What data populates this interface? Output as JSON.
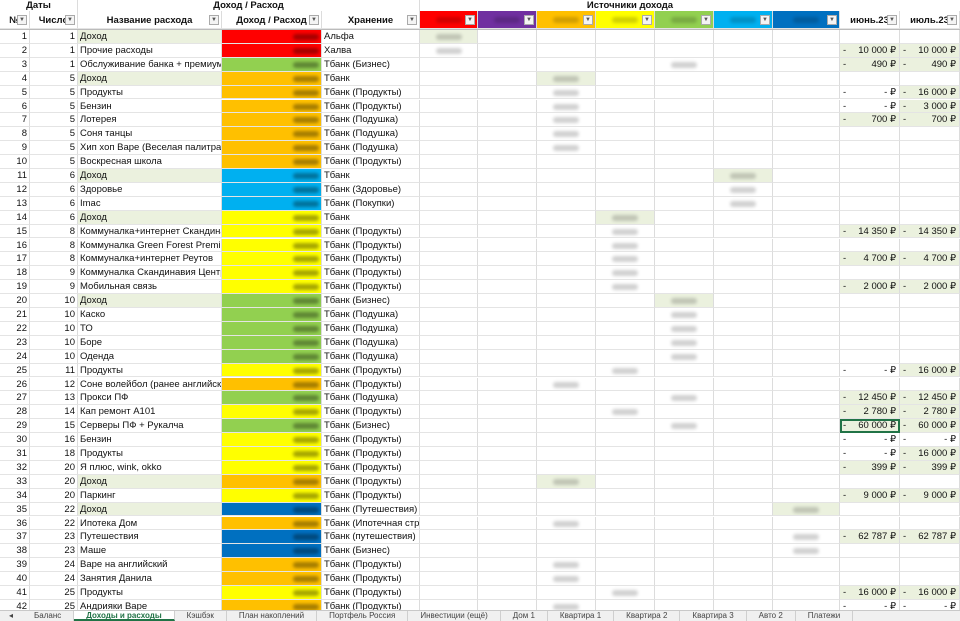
{
  "colors": {
    "red": "#ff0000",
    "purple": "#7030a0",
    "orange": "#ffc000",
    "yellow": "#ffff00",
    "green": "#92d050",
    "sky": "#00b0f0",
    "blue": "#0070c0",
    "income_bg": "#ebf1de",
    "value_bg": "#ebf1de",
    "active_tab": "#217346"
  },
  "header": {
    "group_dates": "Даты",
    "group_income_expense": "Доход / Расход",
    "group_sources": "Источники дохода",
    "col_no": "№",
    "col_day": "Число",
    "col_name": "Название расхода",
    "col_amount": "Доход / Расход",
    "col_storage": "Хранение",
    "source_colors": [
      "red",
      "purple",
      "orange",
      "yellow",
      "green",
      "sky",
      "blue"
    ],
    "col_june": "июнь.23",
    "col_july": "июль.23"
  },
  "rows": [
    {
      "no": "1",
      "day": "1",
      "name": "Доход",
      "storage": "Альфа",
      "color": "red",
      "income": true,
      "src": 0
    },
    {
      "no": "2",
      "day": "1",
      "name": "Прочие расходы",
      "storage": "Халва",
      "color": "red",
      "src": 0,
      "june": "10 000 ₽",
      "july": "10 000 ₽"
    },
    {
      "no": "3",
      "day": "1",
      "name": "Обслуживание банка + премиум",
      "storage": "Тбанк (Бизнес)",
      "color": "green",
      "src": 4,
      "june": "490 ₽",
      "july": "490 ₽"
    },
    {
      "no": "4",
      "day": "5",
      "name": "Доход",
      "storage": "Тбанк",
      "color": "orange",
      "income": true,
      "src": 2
    },
    {
      "no": "5",
      "day": "5",
      "name": "Продукты",
      "storage": "Тбанк (Продукты)",
      "color": "orange",
      "src": 2,
      "june": "-   ₽",
      "july": "16 000 ₽"
    },
    {
      "no": "6",
      "day": "5",
      "name": "Бензин",
      "storage": "Тбанк (Продукты)",
      "color": "orange",
      "src": 2,
      "june": "-   ₽",
      "july": "3 000 ₽"
    },
    {
      "no": "7",
      "day": "5",
      "name": "Лотерея",
      "storage": "Тбанк (Подушка)",
      "color": "orange",
      "src": 2,
      "june": "700 ₽",
      "july": "700 ₽"
    },
    {
      "no": "8",
      "day": "5",
      "name": "Соня танцы",
      "storage": "Тбанк (Подушка)",
      "color": "orange",
      "src": 2
    },
    {
      "no": "9",
      "day": "5",
      "name": "Хип хоп Варе (Веселая палитра)",
      "storage": "Тбанк (Подушка)",
      "color": "orange",
      "src": 2
    },
    {
      "no": "10",
      "day": "5",
      "name": "Воскресная школа",
      "storage": "Тбанк (Продукты)",
      "color": "orange"
    },
    {
      "no": "11",
      "day": "6",
      "name": "Доход",
      "storage": "Тбанк",
      "color": "sky",
      "income": true,
      "src": 5
    },
    {
      "no": "12",
      "day": "6",
      "name": "Здоровье",
      "storage": "Тбанк (Здоровье)",
      "color": "sky",
      "src": 5
    },
    {
      "no": "13",
      "day": "6",
      "name": "Imac",
      "storage": "Тбанк (Покупки)",
      "color": "sky",
      "src": 5
    },
    {
      "no": "14",
      "day": "6",
      "name": "Доход",
      "storage": "Тбанк",
      "color": "yellow",
      "income": true,
      "src": 3
    },
    {
      "no": "15",
      "day": "8",
      "name": "Коммуналка+интернет Скандинавия",
      "storage": "Тбанк (Продукты)",
      "color": "yellow",
      "src": 3,
      "june": "14 350 ₽",
      "july": "14 350 ₽"
    },
    {
      "no": "16",
      "day": "8",
      "name": "Коммуналка Green Forest Premium",
      "storage": "Тбанк (Продукты)",
      "color": "yellow",
      "src": 3
    },
    {
      "no": "17",
      "day": "8",
      "name": "Коммуналка+интернет Реутов",
      "storage": "Тбанк (Продукты)",
      "color": "yellow",
      "src": 3,
      "june": "4 700 ₽",
      "july": "4 700 ₽"
    },
    {
      "no": "18",
      "day": "9",
      "name": "Коммуналка Скандинавия Центр",
      "storage": "Тбанк (Продукты)",
      "color": "yellow",
      "src": 3
    },
    {
      "no": "19",
      "day": "9",
      "name": "Мобильная связь",
      "storage": "Тбанк (Продукты)",
      "color": "yellow",
      "src": 3,
      "june": "2 000 ₽",
      "july": "2 000 ₽"
    },
    {
      "no": "20",
      "day": "10",
      "name": "Доход",
      "storage": "Тбанк (Бизнес)",
      "color": "green",
      "income": true,
      "src": 4
    },
    {
      "no": "21",
      "day": "10",
      "name": "Каско",
      "storage": "Тбанк (Подушка)",
      "color": "green",
      "src": 4
    },
    {
      "no": "22",
      "day": "10",
      "name": "ТО",
      "storage": "Тбанк (Подушка)",
      "color": "green",
      "src": 4
    },
    {
      "no": "23",
      "day": "10",
      "name": "Боре",
      "storage": "Тбанк (Подушка)",
      "color": "green",
      "src": 4
    },
    {
      "no": "24",
      "day": "10",
      "name": "Оденда",
      "storage": "Тбанк (Подушка)",
      "color": "green",
      "src": 4
    },
    {
      "no": "25",
      "day": "11",
      "name": "Продукты",
      "storage": "Тбанк (Продукты)",
      "color": "yellow",
      "src": 3,
      "june": "-   ₽",
      "july": "16 000 ₽"
    },
    {
      "no": "26",
      "day": "12",
      "name": "Соне волейбол (ранее английский)",
      "storage": "Тбанк (Продукты)",
      "color": "orange",
      "src": 2
    },
    {
      "no": "27",
      "day": "13",
      "name": "Прокси ПФ",
      "storage": "Тбанк (Подушка)",
      "color": "green",
      "src": 4,
      "june": "12 450 ₽",
      "july": "12 450 ₽"
    },
    {
      "no": "28",
      "day": "14",
      "name": "Кап ремонт А101",
      "storage": "Тбанк (Продукты)",
      "color": "yellow",
      "src": 3,
      "june": "2 780 ₽",
      "july": "2 780 ₽"
    },
    {
      "no": "29",
      "day": "15",
      "name": "Серверы ПФ + Рукалча",
      "storage": "Тбанк (Бизнес)",
      "color": "green",
      "src": 4,
      "june": "60 000 ₽",
      "july": "60 000 ₽",
      "selected": true
    },
    {
      "no": "30",
      "day": "16",
      "name": "Бензин",
      "storage": "Тбанк (Продукты)",
      "color": "yellow",
      "june": "-   ₽",
      "july": "-   ₽"
    },
    {
      "no": "31",
      "day": "18",
      "name": "Продукты",
      "storage": "Тбанк (Продукты)",
      "color": "yellow",
      "june": "-   ₽",
      "july": "16 000 ₽"
    },
    {
      "no": "32",
      "day": "20",
      "name": "Я плюс, wink, okko",
      "storage": "Тбанк (Продукты)",
      "color": "yellow",
      "june": "399 ₽",
      "july": "399 ₽"
    },
    {
      "no": "33",
      "day": "20",
      "name": "Доход",
      "storage": "Тбанк (Продукты)",
      "color": "orange",
      "income": true,
      "src": 2
    },
    {
      "no": "34",
      "day": "20",
      "name": "Паркинг",
      "storage": "Тбанк (Продукты)",
      "color": "yellow",
      "june": "9 000 ₽",
      "july": "9 000 ₽"
    },
    {
      "no": "35",
      "day": "22",
      "name": "Доход",
      "storage": "Тбанк (Путешествия)",
      "color": "blue",
      "income": true,
      "src": 6
    },
    {
      "no": "36",
      "day": "22",
      "name": "Ипотека Дом",
      "storage": "Тбанк (Ипотечная страховка)",
      "color": "orange",
      "src": 2
    },
    {
      "no": "37",
      "day": "23",
      "name": "Путешествия",
      "storage": "Тбанк (путешествия)",
      "color": "blue",
      "src": 6,
      "june": "62 787 ₽",
      "july": "62 787 ₽"
    },
    {
      "no": "38",
      "day": "23",
      "name": "Маше",
      "storage": "Тбанк (Бизнес)",
      "color": "blue",
      "src": 6
    },
    {
      "no": "39",
      "day": "24",
      "name": "Варе на английский",
      "storage": "Тбанк (Продукты)",
      "color": "orange",
      "src": 2
    },
    {
      "no": "40",
      "day": "24",
      "name": "Занятия Данила",
      "storage": "Тбанк (Продукты)",
      "color": "orange",
      "src": 2
    },
    {
      "no": "41",
      "day": "25",
      "name": "Продукты",
      "storage": "Тбанк (Продукты)",
      "color": "yellow",
      "src": 3,
      "june": "16 000 ₽",
      "july": "16 000 ₽"
    },
    {
      "no": "42",
      "day": "25",
      "name": "Андрияки Варе",
      "storage": "Тбанк (Продукты)",
      "color": "orange",
      "src": 2,
      "june": "-   ₽",
      "july": "-   ₽"
    }
  ],
  "sheet_tabs": [
    "Баланс",
    "Доходы и расходы",
    "Кэшбэк",
    "План накоплений",
    "Портфель Россия",
    "Инвестиции (ещё)",
    "Дом 1",
    "Квартира 1",
    "Квартира 2",
    "Квартира 3",
    "Авто 2",
    "Платежи"
  ],
  "active_tab": 1,
  "nav_arrow": "◂"
}
